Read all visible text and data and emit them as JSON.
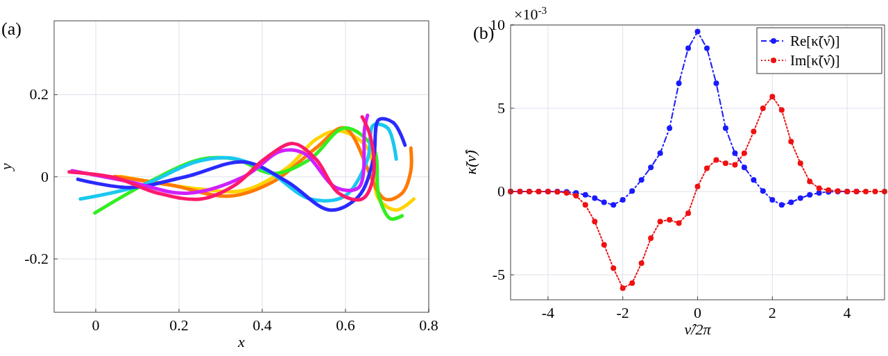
{
  "chart_data": [
    {
      "type": "line",
      "title": "(a)",
      "xlabel": "x",
      "ylabel": "y",
      "xlim": [
        -0.1,
        0.8
      ],
      "ylim": [
        -0.33,
        0.38
      ],
      "xticks": [
        0,
        0.2,
        0.4,
        0.6,
        0.8
      ],
      "yticks": [
        -0.2,
        0,
        0.2
      ],
      "grid": true,
      "legend": false,
      "marker": "none",
      "line_style": "solid",
      "series": [
        {
          "color": "#ffd400",
          "x": [
            0.06,
            0.253,
            0.357,
            0.46,
            0.529,
            0.584,
            0.653,
            0.68,
            0.722,
            0.764
          ],
          "values": [
            0.001,
            -0.03,
            -0.033,
            0.022,
            0.091,
            0.112,
            0.07,
            -0.054,
            -0.081,
            -0.054
          ]
        },
        {
          "color": "#ff7a00",
          "x": [
            0.046,
            0.18,
            0.322,
            0.426,
            0.529,
            0.598,
            0.694,
            0.736,
            0.757,
            0.757
          ],
          "values": [
            0.001,
            -0.02,
            -0.047,
            -0.012,
            0.07,
            0.119,
            -0.054,
            -0.04,
            0.015,
            0.07
          ]
        },
        {
          "color": "#33ee22",
          "x": [
            -0.002,
            0.129,
            0.253,
            0.336,
            0.426,
            0.515,
            0.598,
            0.667,
            0.68,
            0.708,
            0.736
          ],
          "values": [
            -0.088,
            -0.012,
            0.043,
            0.043,
            0.008,
            0.043,
            0.119,
            0.07,
            -0.047,
            -0.102,
            -0.095
          ]
        },
        {
          "color": "#1ac8f0",
          "x": [
            -0.037,
            0.115,
            0.239,
            0.322,
            0.412,
            0.515,
            0.598,
            0.653,
            0.667,
            0.701,
            0.722
          ],
          "values": [
            -0.054,
            -0.019,
            0.036,
            0.046,
            0.015,
            -0.054,
            -0.047,
            0.043,
            0.126,
            0.119,
            0.043
          ]
        },
        {
          "color": "#2a2aff",
          "x": [
            -0.043,
            0.081,
            0.219,
            0.357,
            0.46,
            0.563,
            0.632,
            0.667,
            0.68,
            0.715,
            0.743
          ],
          "values": [
            -0.006,
            -0.026,
            0.001,
            0.036,
            -0.012,
            -0.081,
            -0.047,
            0.043,
            0.139,
            0.132,
            0.077
          ]
        },
        {
          "color": "#d020ff",
          "x": [
            -0.057,
            0.081,
            0.219,
            0.357,
            0.446,
            0.501,
            0.577,
            0.632,
            0.646,
            0.653
          ],
          "values": [
            0.015,
            -0.012,
            -0.04,
            0.001,
            0.063,
            0.057,
            -0.026,
            -0.026,
            0.119,
            0.15
          ]
        },
        {
          "color": "#ff1a6e",
          "x": [
            -0.064,
            0.046,
            0.15,
            0.253,
            0.336,
            0.405,
            0.474,
            0.529,
            0.584,
            0.64,
            0.667,
            0.66,
            0.64
          ],
          "values": [
            0.012,
            -0.002,
            -0.04,
            -0.054,
            -0.019,
            0.043,
            0.081,
            0.043,
            -0.04,
            -0.054,
            0.001,
            0.098,
            0.146
          ]
        }
      ]
    },
    {
      "type": "line",
      "title": "(b)",
      "xlabel": "ν̂/2π",
      "ylabel": "κ̃(ν̂)",
      "annotations": [
        "×10$^{-3}$"
      ],
      "xlim": [
        -5,
        5
      ],
      "ylim": [
        -6.5,
        10
      ],
      "xticks": [
        -4,
        -2,
        0,
        2,
        4
      ],
      "yticks": [
        -5,
        0,
        5,
        10
      ],
      "grid": true,
      "legend": "top right",
      "marker": "circle",
      "x": [
        -5,
        -4.75,
        -4.5,
        -4.25,
        -4,
        -3.75,
        -3.5,
        -3.25,
        -3,
        -2.75,
        -2.5,
        -2.25,
        -2,
        -1.75,
        -1.5,
        -1.25,
        -1,
        -0.75,
        -0.5,
        -0.25,
        0,
        0.25,
        0.5,
        0.75,
        1,
        1.25,
        1.5,
        1.75,
        2,
        2.25,
        2.5,
        2.75,
        3,
        3.25,
        3.5,
        3.75,
        4,
        4.25,
        4.5,
        4.75,
        5
      ],
      "series": [
        {
          "name": "Re[κ̃(ν̂)]",
          "color": "#1a1aff",
          "line_style": "dashed",
          "values": [
            0,
            0,
            0,
            0,
            0,
            0,
            -0.02,
            -0.08,
            -0.2,
            -0.4,
            -0.65,
            -0.8,
            -0.5,
            0.03,
            0.7,
            1.45,
            2.3,
            3.8,
            6.5,
            8.6,
            9.6,
            8.6,
            6.5,
            3.8,
            2.3,
            1.45,
            0.7,
            0.03,
            -0.5,
            -0.8,
            -0.65,
            -0.4,
            -0.2,
            -0.08,
            -0.02,
            0,
            0,
            0,
            null,
            null,
            null
          ]
        },
        {
          "name": "Im[κ̃(ν̂)]",
          "color": "#ee1111",
          "line_style": "dotted",
          "values": [
            0,
            0,
            0,
            0,
            0,
            -0.02,
            -0.08,
            -0.25,
            -0.8,
            -1.8,
            -3.2,
            -4.6,
            -5.8,
            -5.5,
            -4.3,
            -2.8,
            -1.8,
            -1.7,
            -1.9,
            -1.3,
            0.3,
            1.4,
            1.9,
            1.7,
            1.6,
            2.3,
            3.6,
            5.0,
            5.7,
            4.9,
            3.0,
            1.7,
            0.6,
            0.2,
            0.08,
            0.03,
            0,
            0,
            0,
            0,
            0
          ]
        }
      ]
    }
  ]
}
